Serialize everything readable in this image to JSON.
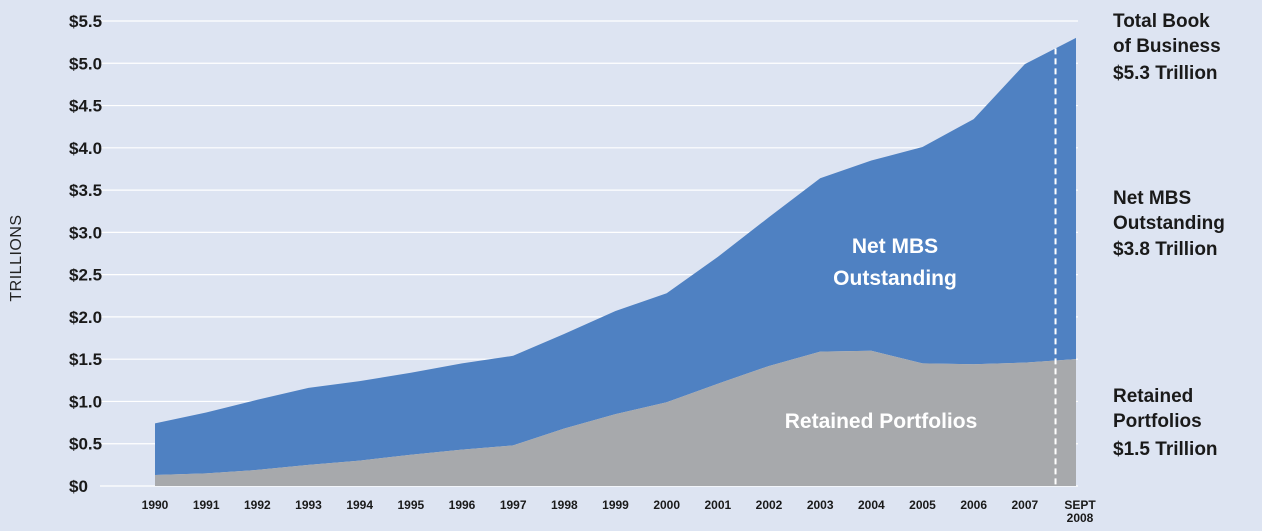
{
  "chart_data": {
    "type": "area",
    "ylabel": "TRILLIONS",
    "xlabel": "",
    "ylim": [
      0,
      5.5
    ],
    "grid": true,
    "y_ticks": [
      "$0",
      "$0.5",
      "$1.0",
      "$1.5",
      "$2.0",
      "$2.5",
      "$3.0",
      "$3.5",
      "$4.0",
      "$4.5",
      "$5.0",
      "$5.5"
    ],
    "categories": [
      "1990",
      "1991",
      "1992",
      "1993",
      "1994",
      "1995",
      "1996",
      "1997",
      "1998",
      "1999",
      "2000",
      "2001",
      "2002",
      "2003",
      "2004",
      "2005",
      "2006",
      "2007",
      "SEPT 2008"
    ],
    "series": [
      {
        "name": "Retained Portfolios",
        "color": "#a7a9ac",
        "values": [
          0.13,
          0.15,
          0.19,
          0.25,
          0.3,
          0.37,
          0.43,
          0.48,
          0.68,
          0.85,
          0.99,
          1.21,
          1.42,
          1.59,
          1.6,
          1.45,
          1.44,
          1.46,
          1.5
        ]
      },
      {
        "name": "Net MBS Outstanding",
        "color": "#4f81c2",
        "values": [
          0.61,
          0.72,
          0.83,
          0.91,
          0.94,
          0.97,
          1.02,
          1.06,
          1.12,
          1.22,
          1.29,
          1.5,
          1.76,
          2.05,
          2.25,
          2.56,
          2.9,
          3.53,
          3.8
        ]
      }
    ],
    "total_values": [
      0.74,
      0.87,
      1.02,
      1.16,
      1.24,
      1.34,
      1.45,
      1.54,
      1.8,
      2.07,
      2.28,
      2.71,
      3.18,
      3.64,
      3.85,
      4.01,
      4.34,
      4.99,
      5.3
    ],
    "area_labels": {
      "mbs": [
        "Net MBS",
        "Outstanding"
      ],
      "retained": [
        "Retained Portfolios"
      ]
    },
    "side_labels": {
      "total": [
        "Total Book",
        "of Business",
        "$5.3 Trillion"
      ],
      "mbs": [
        "Net MBS",
        "Outstanding",
        "$3.8 Trillion"
      ],
      "retained": [
        "Retained",
        "Portfolios",
        "$1.5 Trillion"
      ]
    },
    "marker_line": "dashed white vertical line before SEPT 2008"
  }
}
